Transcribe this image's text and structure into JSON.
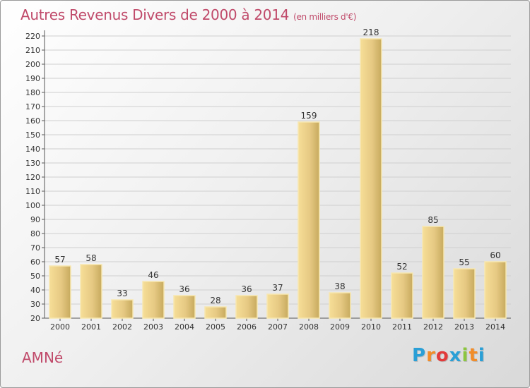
{
  "header": {
    "title": "Autres Revenus Divers de 2000 à 2014",
    "subtitle": "(en milliers d'€)"
  },
  "footer": {
    "commune": "AMNé",
    "logo_letters": [
      "P",
      "r",
      "o",
      "x",
      "i",
      "t",
      "i"
    ],
    "logo_colors": [
      "#2a9fd6",
      "#f28c28",
      "#e23b3b",
      "#2a9fd6",
      "#8cc63f",
      "#f28c28",
      "#2a9fd6"
    ]
  },
  "chart_data": {
    "type": "bar",
    "categories": [
      "2000",
      "2001",
      "2002",
      "2003",
      "2004",
      "2005",
      "2006",
      "2007",
      "2008",
      "2009",
      "2010",
      "2011",
      "2012",
      "2013",
      "2014"
    ],
    "values": [
      57,
      58,
      33,
      46,
      36,
      28,
      36,
      37,
      159,
      38,
      218,
      52,
      85,
      55,
      60
    ],
    "title": "Autres Revenus Divers de 2000 à 2014",
    "xlabel": "",
    "ylabel": "",
    "ylim": [
      20,
      220
    ],
    "yticks": [
      20,
      30,
      40,
      50,
      60,
      70,
      80,
      90,
      100,
      110,
      120,
      130,
      140,
      150,
      160,
      170,
      180,
      190,
      200,
      210,
      220
    ],
    "grid": true,
    "data_labels": true,
    "colors": {
      "bar_light": "#f5dc93",
      "bar_dark": "#c7aa5e",
      "bar_border": "#f7e7b0",
      "grid": "#cfcfcf",
      "axis": "#555555",
      "text": "#333333",
      "accent": "#c04a6a"
    }
  }
}
